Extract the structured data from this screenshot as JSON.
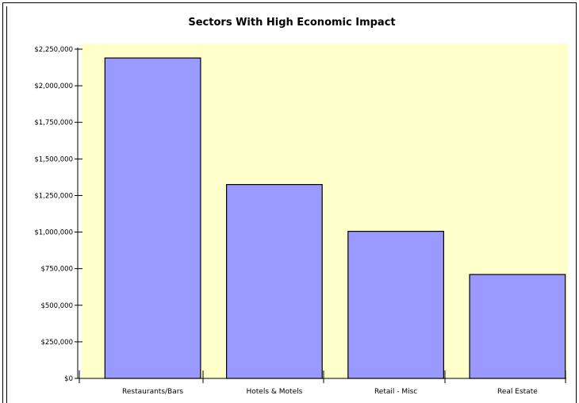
{
  "chart_data": {
    "type": "bar",
    "title": "Sectors With High Economic Impact",
    "xlabel": "",
    "ylabel": "",
    "categories": [
      "Restaurants/Bars",
      "Hotels & Motels",
      "Retail - Misc",
      "Real Estate"
    ],
    "values": [
      2190000,
      1325000,
      1005000,
      710000
    ],
    "ylim": [
      0,
      2250000
    ],
    "yticks": [
      0,
      250000,
      500000,
      750000,
      1000000,
      1250000,
      1500000,
      1750000,
      2000000,
      2250000
    ],
    "ytick_labels": [
      "$0",
      "$250,000",
      "$500,000",
      "$750,000",
      "$1,000,000",
      "$1,250,000",
      "$1,500,000",
      "$1,750,000",
      "$2,000,000",
      "$2,250,000"
    ],
    "grid": false,
    "legend": "none",
    "colors": {
      "bar_fill": "#9999ff",
      "bar_stroke": "#000000",
      "plot_background": "#ffffcc",
      "text": "#000000"
    }
  }
}
